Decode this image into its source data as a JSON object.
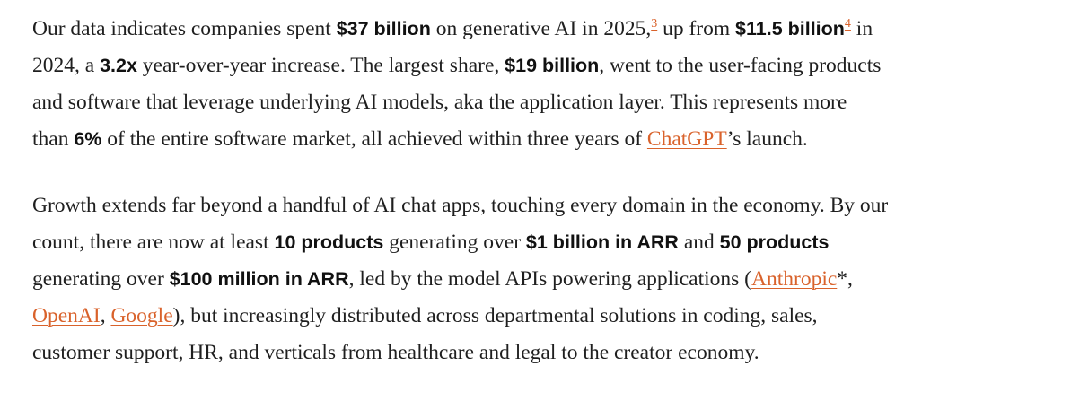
{
  "paragraphs": [
    [
      "Our data indicates companies spent ",
      "$37 billion",
      " on generative AI in 2025,",
      "3",
      " up from ",
      "$11.5 billion",
      "4",
      " in",
      "2024, a ",
      "3.2x",
      " year-over-year increase. The largest share, ",
      "$19 billion",
      ", went to the user-facing products",
      "and software that leverage underlying AI models, aka the application layer. This represents more",
      "than ",
      "6%",
      " of the entire software market, all achieved within three years of ",
      "ChatGPT",
      "’s launch."
    ],
    [
      "Growth extends far beyond a handful of AI chat apps, touching every domain in the economy. By our",
      "count, there are now at least ",
      "10 products",
      " generating over ",
      "$1 billion in ARR",
      " and ",
      "50 products",
      "generating over ",
      "$100 million in ARR",
      ", led by the model APIs powering applications (",
      "Anthropic",
      "*,",
      "OpenAI",
      ", ",
      "Google",
      "), but increasingly distributed across departmental solutions in coding, sales,",
      "customer support, HR, and verticals from healthcare and legal to the creator economy."
    ]
  ]
}
